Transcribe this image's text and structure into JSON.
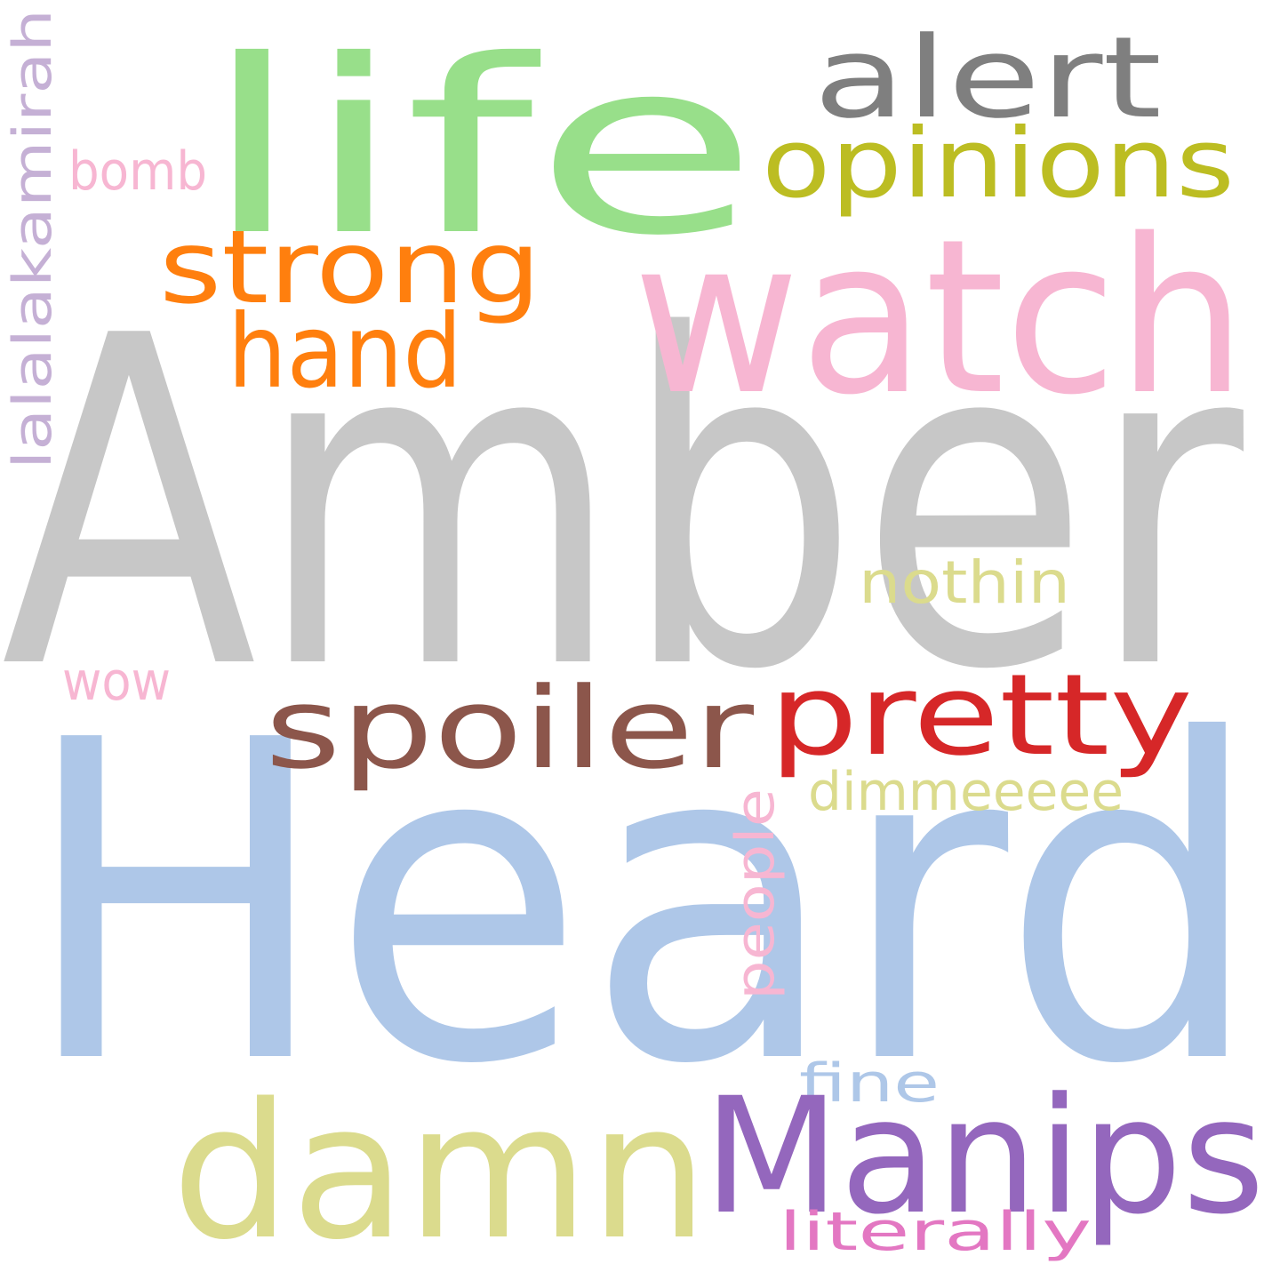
{
  "word_cloud": {
    "words": [
      {
        "text": "Amber",
        "color": "#c7c7c7"
      },
      {
        "text": "Heard",
        "color": "#aec7e8"
      },
      {
        "text": "life",
        "color": "#98df8a"
      },
      {
        "text": "watch",
        "color": "#f7b6d2"
      },
      {
        "text": "alert",
        "color": "#7f7f7f"
      },
      {
        "text": "opinions",
        "color": "#bcbd22"
      },
      {
        "text": "strong",
        "color": "#ff7f0e"
      },
      {
        "text": "hand",
        "color": "#ff7f0e"
      },
      {
        "text": "bomb",
        "color": "#f7b6d2"
      },
      {
        "text": "lalalakamirah",
        "color": "#c5b0d5"
      },
      {
        "text": "nothin",
        "color": "#dbdb8d"
      },
      {
        "text": "wow",
        "color": "#f7b6d2"
      },
      {
        "text": "spoiler",
        "color": "#8c564b"
      },
      {
        "text": "pretty",
        "color": "#d62728"
      },
      {
        "text": "dimmeeeee",
        "color": "#dbdb8d"
      },
      {
        "text": "people",
        "color": "#f7b6d2"
      },
      {
        "text": "fine",
        "color": "#aec7e8"
      },
      {
        "text": "damn",
        "color": "#dbdb8d"
      },
      {
        "text": "Manips",
        "color": "#9467bd"
      },
      {
        "text": "literally",
        "color": "#e377c2"
      }
    ]
  }
}
